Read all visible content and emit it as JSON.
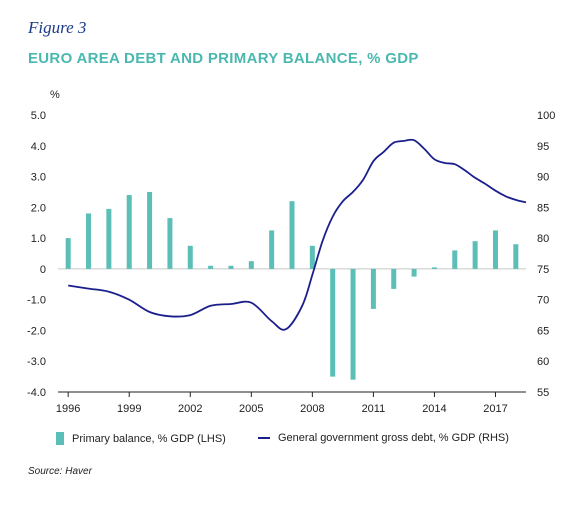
{
  "figure": {
    "label": "Figure 3",
    "title": "EURO AREA DEBT AND PRIMARY BALANCE, % GDP",
    "source": "Source: Haver"
  },
  "colors": {
    "bars": "#5bbfb8",
    "line": "#1a1f8c",
    "title": "#4bb8b0",
    "label": "#1a3a8a"
  },
  "chart_data": {
    "type": "bar+line",
    "left_axis_unit": "%",
    "ylim_left": [
      -4.0,
      5.0
    ],
    "ylim_right": [
      55,
      100
    ],
    "left_ticks": [
      "5.0",
      "4.0",
      "3.0",
      "2.0",
      "1.0",
      "0",
      "-1.0",
      "-2.0",
      "-3.0",
      "-4.0"
    ],
    "right_ticks": [
      "100",
      "95",
      "90",
      "85",
      "80",
      "75",
      "70",
      "65",
      "60",
      "55"
    ],
    "x_ticks": [
      "1996",
      "1999",
      "2002",
      "2005",
      "2008",
      "2011",
      "2014",
      "2017"
    ],
    "series": [
      {
        "name": "Primary balance, % GDP (LHS)",
        "type": "bar",
        "axis": "left",
        "x": [
          1996,
          1997,
          1998,
          1999,
          2000,
          2001,
          2002,
          2003,
          2004,
          2005,
          2006,
          2007,
          2008,
          2009,
          2010,
          2011,
          2012,
          2013,
          2014,
          2015,
          2016,
          2017,
          2018
        ],
        "values": [
          1.0,
          1.8,
          1.95,
          2.4,
          2.5,
          1.65,
          0.75,
          0.1,
          0.1,
          0.25,
          1.25,
          2.2,
          0.75,
          -3.5,
          -3.6,
          -1.3,
          -0.65,
          -0.25,
          0.05,
          0.6,
          0.9,
          1.25,
          0.8
        ]
      },
      {
        "name": "General government gross debt, % GDP (RHS)",
        "type": "line",
        "axis": "right",
        "x": [
          1996.0,
          1997.0,
          1998.0,
          1999.0,
          2000.0,
          2001.0,
          2002.0,
          2003.0,
          2004.0,
          2005.0,
          2006.0,
          2006.7,
          2007.5,
          2008.0,
          2008.5,
          2009.0,
          2009.5,
          2010.0,
          2010.5,
          2011.0,
          2011.5,
          2012.0,
          2012.5,
          2013.0,
          2013.5,
          2014.0,
          2014.5,
          2015.0,
          2015.5,
          2016.0,
          2016.5,
          2017.0,
          2017.5,
          2018.0,
          2018.5
        ],
        "values": [
          72.3,
          71.8,
          71.3,
          70.0,
          68.0,
          67.3,
          67.5,
          69.0,
          69.3,
          69.5,
          66.5,
          65.2,
          69.0,
          74.0,
          79.5,
          83.5,
          86.0,
          87.5,
          89.5,
          92.5,
          94.0,
          95.5,
          95.8,
          95.9,
          94.5,
          92.8,
          92.2,
          92.0,
          91.0,
          89.8,
          88.8,
          87.7,
          86.8,
          86.2,
          85.8
        ]
      }
    ],
    "legend_position": "bottom"
  }
}
